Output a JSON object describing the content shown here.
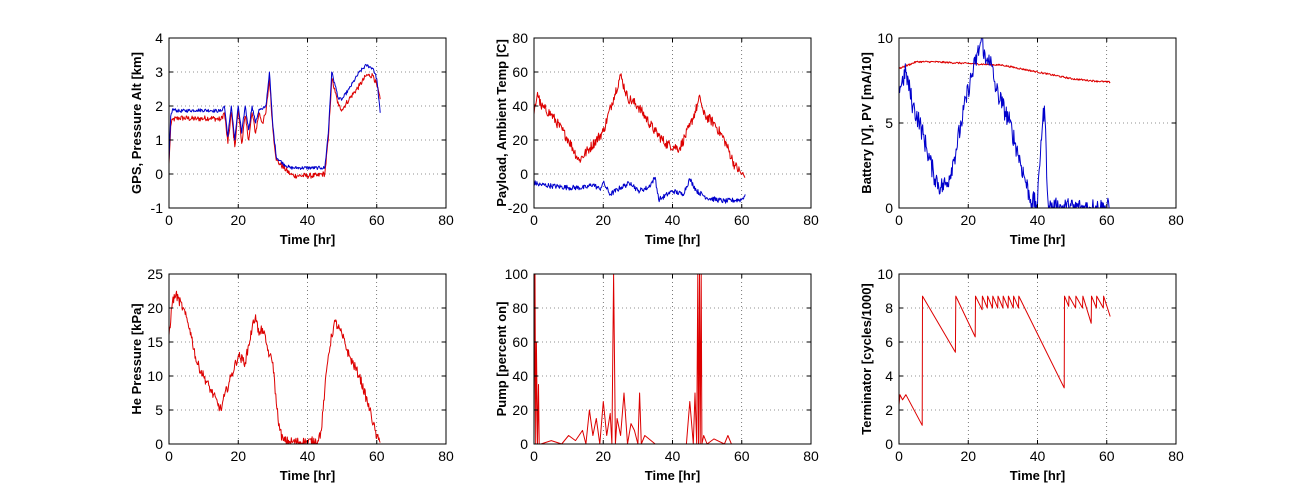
{
  "chart_data": [
    {
      "type": "line",
      "xlabel": "Time [hr]",
      "ylabel": "GPS, Pressure Alt [km]",
      "xlim": [
        0,
        80
      ],
      "ylim": [
        -1,
        4
      ],
      "xticks": [
        0,
        20,
        40,
        60,
        80
      ],
      "yticks": [
        -1,
        0,
        1,
        2,
        3,
        4
      ],
      "grid": true,
      "series": [
        {
          "color": "#dd0000",
          "noise": 0.08,
          "x": [
            0,
            0.5,
            1,
            3,
            8,
            12,
            15,
            16,
            17,
            18,
            19,
            20,
            21,
            22,
            23,
            24,
            25,
            26,
            27,
            28,
            29,
            30,
            31,
            32,
            33,
            35,
            36,
            37,
            40,
            43,
            44,
            45,
            46,
            47,
            48,
            49,
            50,
            52,
            55,
            57,
            59,
            60,
            61
          ],
          "y": [
            0.3,
            1.4,
            1.6,
            1.65,
            1.62,
            1.65,
            1.6,
            1.8,
            0.9,
            1.8,
            0.8,
            1.9,
            0.9,
            1.7,
            1.0,
            1.8,
            1.2,
            1.8,
            1.5,
            1.8,
            2.8,
            1.3,
            0.4,
            0.3,
            0.2,
            0.0,
            -0.05,
            -0.05,
            -0.05,
            -0.05,
            0.0,
            0.0,
            1.0,
            2.8,
            2.4,
            2.0,
            1.9,
            2.2,
            2.6,
            2.9,
            2.9,
            2.6,
            2.2
          ]
        },
        {
          "color": "#0000cc",
          "noise": 0.05,
          "x": [
            0,
            0.5,
            1,
            3,
            8,
            12,
            15,
            16,
            17,
            18,
            19,
            20,
            21,
            22,
            23,
            24,
            25,
            26,
            27,
            28,
            29,
            30,
            31,
            33,
            35,
            36,
            37,
            40,
            43,
            44,
            45,
            46,
            47,
            48,
            49,
            50,
            52,
            55,
            57,
            59,
            60,
            61
          ],
          "y": [
            0.4,
            1.7,
            1.9,
            1.85,
            1.88,
            1.87,
            1.85,
            2.0,
            1.1,
            2.0,
            1.0,
            2.0,
            1.2,
            2.0,
            1.3,
            2.0,
            1.5,
            1.9,
            1.9,
            2.0,
            3.0,
            1.4,
            0.5,
            0.3,
            0.18,
            0.18,
            0.18,
            0.18,
            0.18,
            0.18,
            0.18,
            1.2,
            3.0,
            2.6,
            2.2,
            2.2,
            2.5,
            3.0,
            3.2,
            3.1,
            2.8,
            1.8
          ]
        }
      ]
    },
    {
      "type": "line",
      "xlabel": "Time [hr]",
      "ylabel": "Payload, Ambient Temp [C]",
      "xlim": [
        0,
        80
      ],
      "ylim": [
        -20,
        80
      ],
      "xticks": [
        0,
        20,
        40,
        60,
        80
      ],
      "yticks": [
        -20,
        0,
        20,
        40,
        60,
        80
      ],
      "grid": true,
      "series": [
        {
          "color": "#dd0000",
          "noise": 3,
          "x": [
            0,
            1,
            2,
            5,
            10,
            13,
            16,
            20,
            23,
            25,
            27,
            30,
            35,
            38,
            42,
            45,
            48,
            49,
            52,
            55,
            58,
            60,
            61
          ],
          "y": [
            35,
            48,
            40,
            35,
            20,
            8,
            15,
            25,
            45,
            58,
            45,
            40,
            25,
            18,
            15,
            28,
            45,
            35,
            30,
            20,
            5,
            0,
            -2
          ]
        },
        {
          "color": "#0000cc",
          "noise": 1.5,
          "x": [
            0,
            1,
            5,
            10,
            15,
            17,
            19,
            20,
            22,
            25,
            28,
            30,
            33,
            35,
            36,
            37,
            40,
            43,
            45,
            47,
            50,
            55,
            60,
            61
          ],
          "y": [
            -5,
            -6,
            -7,
            -8,
            -8,
            -6,
            -9,
            -5,
            -12,
            -8,
            -5,
            -10,
            -8,
            -2,
            -15,
            -14,
            -10,
            -12,
            -3,
            -10,
            -14,
            -16,
            -15,
            -12
          ]
        }
      ]
    },
    {
      "type": "line",
      "xlabel": "Time [hr]",
      "ylabel": "Battery [V], PV [mA/10]",
      "xlim": [
        0,
        80
      ],
      "ylim": [
        0,
        10
      ],
      "xticks": [
        0,
        20,
        40,
        60,
        80
      ],
      "yticks": [
        0,
        5,
        10
      ],
      "grid": true,
      "series": [
        {
          "color": "#dd0000",
          "noise": 0.05,
          "x": [
            0,
            5,
            10,
            20,
            30,
            40,
            50,
            55,
            61
          ],
          "y": [
            8.2,
            8.6,
            8.6,
            8.5,
            8.4,
            8.0,
            7.6,
            7.5,
            7.4
          ]
        },
        {
          "color": "#0000cc",
          "noise": 0.6,
          "x": [
            0,
            2,
            4,
            6,
            8,
            10,
            12,
            14,
            16,
            18,
            20,
            22,
            24,
            25,
            26,
            28,
            30,
            32,
            34,
            36,
            38,
            40,
            41,
            42,
            43,
            43.5,
            61
          ],
          "y": [
            7,
            8,
            6,
            5,
            3.5,
            2,
            1.2,
            1.5,
            3,
            5,
            7,
            8.5,
            10,
            8.5,
            9,
            7,
            6,
            5,
            3.5,
            2,
            0.5,
            0.2,
            4,
            6,
            0.5,
            0,
            0
          ]
        }
      ]
    },
    {
      "type": "line",
      "xlabel": "Time [hr]",
      "ylabel": "He Pressure [kPa]",
      "xlim": [
        0,
        80
      ],
      "ylim": [
        0,
        25
      ],
      "xticks": [
        0,
        20,
        40,
        60,
        80
      ],
      "yticks": [
        0,
        5,
        10,
        15,
        20,
        25
      ],
      "grid": true,
      "series": [
        {
          "color": "#dd0000",
          "noise": 0.7,
          "x": [
            0,
            1,
            2,
            4,
            6,
            8,
            10,
            12,
            14,
            15,
            16,
            18,
            20,
            22,
            24,
            25,
            26,
            27,
            28,
            29,
            30,
            31,
            32,
            33,
            35,
            40,
            43,
            44,
            45,
            46,
            47,
            48,
            50,
            52,
            55,
            58,
            60,
            61
          ],
          "y": [
            16,
            21,
            22,
            20,
            17,
            12,
            10,
            8,
            6,
            5,
            7,
            10,
            13,
            12,
            17,
            19,
            16,
            17,
            15,
            13,
            12,
            6,
            2,
            0.5,
            0.3,
            0.3,
            0.5,
            2,
            8,
            13,
            16,
            18,
            16,
            13,
            10,
            5,
            1,
            0.2
          ]
        }
      ]
    },
    {
      "type": "line",
      "xlabel": "Time [hr]",
      "ylabel": "Pump [percent on]",
      "xlim": [
        0,
        80
      ],
      "ylim": [
        0,
        100
      ],
      "xticks": [
        0,
        20,
        40,
        60,
        80
      ],
      "yticks": [
        0,
        20,
        40,
        60,
        80,
        100
      ],
      "grid": true,
      "series": [
        {
          "color": "#dd0000",
          "noise": 0,
          "x": [
            0,
            0.3,
            0.5,
            0.7,
            1,
            1.3,
            1.5,
            2,
            5,
            8,
            10,
            12,
            14,
            15,
            16,
            17,
            18,
            19,
            20,
            21,
            22,
            22.5,
            23,
            23.5,
            24,
            25,
            26,
            27,
            28,
            29,
            30,
            30.5,
            31,
            32,
            35,
            40,
            44,
            45,
            46,
            46.5,
            47,
            47.3,
            47.5,
            47.8,
            48,
            48.3,
            48.5,
            49,
            50,
            52,
            55,
            56,
            57,
            60,
            61
          ],
          "y": [
            0,
            100,
            0,
            60,
            0,
            35,
            0,
            0,
            2,
            0,
            5,
            2,
            8,
            0,
            20,
            5,
            15,
            0,
            25,
            5,
            18,
            0,
            100,
            0,
            15,
            5,
            30,
            0,
            12,
            8,
            0,
            30,
            0,
            5,
            0,
            0,
            0,
            25,
            0,
            30,
            0,
            100,
            0,
            100,
            0,
            100,
            0,
            5,
            0,
            3,
            0,
            5,
            0,
            0,
            0
          ]
        }
      ]
    },
    {
      "type": "line",
      "xlabel": "Time [hr]",
      "ylabel": "Terminator [cycles/1000]",
      "xlim": [
        0,
        80
      ],
      "ylim": [
        0,
        10
      ],
      "xticks": [
        0,
        20,
        40,
        60,
        80
      ],
      "yticks": [
        0,
        2,
        4,
        6,
        8,
        10
      ],
      "grid": true,
      "series": [
        {
          "color": "#dd0000",
          "noise": 0,
          "x": [
            0,
            0.3,
            1,
            2,
            6.7,
            6.8,
            16.3,
            16.4,
            22,
            22.1,
            24,
            24.1,
            25.5,
            25.6,
            27,
            27.1,
            28.5,
            28.6,
            30,
            30.1,
            31.5,
            31.6,
            33,
            33.1,
            34.5,
            34.6,
            47.7,
            47.8,
            49,
            49.1,
            51,
            51.1,
            53,
            53.1,
            55.5,
            55.6,
            57,
            57.1,
            59,
            59.1,
            61
          ],
          "y": [
            2.3,
            2.9,
            2.6,
            2.9,
            1.1,
            8.7,
            5.4,
            8.7,
            6.3,
            8.7,
            7.9,
            8.7,
            8.0,
            8.7,
            8.0,
            8.7,
            8.0,
            8.7,
            8.0,
            8.7,
            8.0,
            8.7,
            8.0,
            8.7,
            8.0,
            8.7,
            3.3,
            8.7,
            8.1,
            8.7,
            8.0,
            8.7,
            8.0,
            8.7,
            7.1,
            8.7,
            8.0,
            8.7,
            8.0,
            8.7,
            7.5
          ]
        }
      ]
    }
  ]
}
